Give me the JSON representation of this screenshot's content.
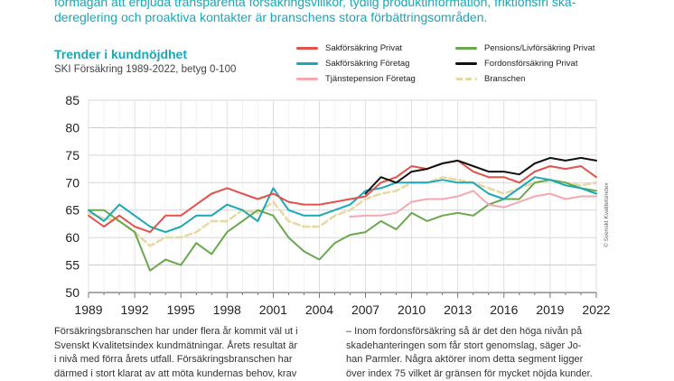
{
  "intro": {
    "line1": "förmågan att erbjuda transparenta försäkringsvillkor, tydlig produktinformation, friktionsfri ska-",
    "line2": "dereglering och proaktiva kontakter är branschens stora förbättringsområden."
  },
  "credit": "© Svenskt Kvalitetsindex",
  "body": {
    "col1": [
      "Försäkringsbranschen har under flera år kommit väl ut i",
      "Svenskt Kvalitetsindex kundmätningar. Årets resultat är",
      "i nivå med förra årets utfall. Försäkringsbranschen har",
      "därmed i stort klarat av att möta kundernas behov, krav"
    ],
    "col2": [
      "– Inom fordonsförsäkring så är det den höga nivån på",
      "skadehanteringen som får stort genomslag, säger Jo-",
      "han Parmler. Några aktörer inom detta segment ligger",
      "över index 75 vilket är gränsen för mycket nöjda kunder."
    ]
  },
  "chart_data": {
    "type": "line",
    "title": "Trender i kundnöjdhet",
    "subtitle": "SKI Försäkring 1989-2022, betyg 0-100",
    "xlabel": "",
    "ylabel": "",
    "ylim": [
      50,
      85
    ],
    "xlim": [
      1989,
      2022
    ],
    "yticks": [
      "50",
      "55",
      "60",
      "65",
      "70",
      "75",
      "80",
      "85"
    ],
    "xticks": [
      "1989",
      "1992",
      "1995",
      "1998",
      "2001",
      "2004",
      "2007",
      "2010",
      "2013",
      "2016",
      "2019",
      "2022"
    ],
    "grid": true,
    "series": [
      {
        "name": "Sakförsäkring Privat",
        "color": "#e2524a",
        "dashed": false,
        "x": [
          1989,
          1990,
          1991,
          1992,
          1993,
          1994,
          1995,
          1996,
          1997,
          1998,
          1999,
          2000,
          2001,
          2002,
          2003,
          2004,
          2005,
          2006,
          2007,
          2008,
          2009,
          2010,
          2011,
          2012,
          2013,
          2014,
          2015,
          2016,
          2017,
          2018,
          2019,
          2020,
          2021,
          2022
        ],
        "y": [
          64,
          62,
          64,
          62,
          61,
          64,
          64,
          66,
          68,
          69,
          68,
          67,
          68,
          66.5,
          66,
          66,
          66.5,
          67,
          67.5,
          70,
          71,
          73,
          72.5,
          73.5,
          74,
          72,
          71,
          71,
          70,
          72,
          73,
          72.5,
          73,
          71
        ]
      },
      {
        "name": "Sakförsäkring Företag",
        "color": "#1aa7b6",
        "dashed": false,
        "x": [
          1989,
          1990,
          1991,
          1992,
          1993,
          1994,
          1995,
          1996,
          1997,
          1998,
          1999,
          2000,
          2001,
          2002,
          2003,
          2004,
          2005,
          2006,
          2007,
          2008,
          2009,
          2010,
          2011,
          2012,
          2013,
          2014,
          2015,
          2016,
          2017,
          2018,
          2019,
          2020,
          2021,
          2022
        ],
        "y": [
          65,
          63,
          66,
          64,
          62,
          61,
          62,
          64,
          64,
          66,
          65,
          63,
          69,
          65,
          64,
          64,
          65,
          66,
          68.5,
          69,
          70,
          70,
          70,
          70.5,
          70,
          70,
          68,
          67,
          69,
          71,
          70.5,
          69.5,
          69,
          68
        ]
      },
      {
        "name": "Tjänstepension Företag",
        "color": "#f2a9b0",
        "dashed": false,
        "x": [
          2006,
          2007,
          2008,
          2009,
          2010,
          2011,
          2012,
          2013,
          2014,
          2015,
          2016,
          2017,
          2018,
          2019,
          2020,
          2021,
          2022
        ],
        "y": [
          63.8,
          64,
          64,
          64.5,
          66.5,
          67,
          67,
          67.5,
          68.5,
          66,
          65.5,
          66.5,
          67.5,
          68,
          67,
          67.5,
          67.5
        ]
      },
      {
        "name": "Pensions/Livförsäkring Privat",
        "color": "#6aa84f",
        "dashed": false,
        "x": [
          1989,
          1990,
          1991,
          1992,
          1993,
          1994,
          1995,
          1996,
          1997,
          1998,
          1999,
          2000,
          2001,
          2002,
          2003,
          2004,
          2005,
          2006,
          2007,
          2008,
          2009,
          2010,
          2011,
          2012,
          2013,
          2014,
          2015,
          2016,
          2017,
          2018,
          2019,
          2020,
          2021,
          2022
        ],
        "y": [
          65,
          65,
          63,
          61,
          54,
          56,
          55,
          59,
          57,
          61,
          63,
          65,
          64,
          60,
          57.5,
          56,
          59,
          60.5,
          61,
          63,
          61.5,
          64.5,
          63,
          64,
          64.5,
          64,
          66,
          67,
          67,
          70,
          70.5,
          70,
          69,
          68.5
        ]
      },
      {
        "name": "Fordonsförsäkring Privat",
        "color": "#111111",
        "dashed": false,
        "x": [
          2007,
          2008,
          2009,
          2010,
          2011,
          2012,
          2013,
          2014,
          2015,
          2016,
          2017,
          2018,
          2019,
          2020,
          2021,
          2022
        ],
        "y": [
          68,
          71,
          70,
          72,
          72.5,
          73.5,
          74,
          73,
          72,
          72,
          71.5,
          73.5,
          74.5,
          74,
          74.5,
          74
        ]
      },
      {
        "name": "Branschen",
        "color": "#e8d9a4",
        "dashed": true,
        "x": [
          1989,
          1990,
          1991,
          1992,
          1993,
          1994,
          1995,
          1996,
          1997,
          1998,
          1999,
          2000,
          2001,
          2002,
          2003,
          2004,
          2005,
          2006,
          2007,
          2008,
          2009,
          2010,
          2011,
          2012,
          2013,
          2014,
          2015,
          2016,
          2017,
          2018,
          2019,
          2020,
          2021,
          2022
        ],
        "y": [
          64.5,
          63.5,
          63,
          61,
          58.5,
          60,
          60,
          61,
          63,
          63,
          65,
          64.5,
          66.5,
          63,
          62,
          62,
          64,
          65,
          67,
          68,
          68.5,
          70,
          70,
          71,
          70.5,
          70,
          69,
          68,
          69,
          70,
          70.5,
          70,
          69.5,
          70
        ]
      }
    ]
  }
}
